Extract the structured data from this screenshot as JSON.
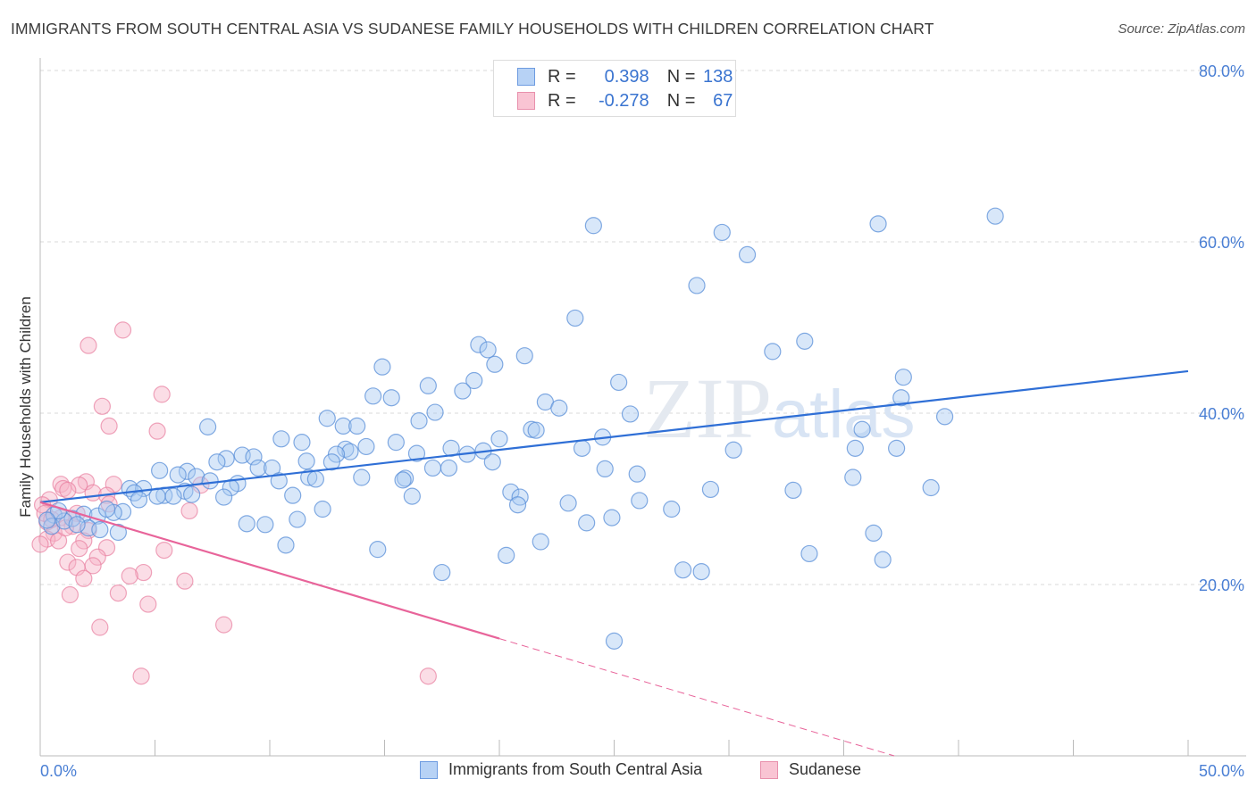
{
  "title": "IMMIGRANTS FROM SOUTH CENTRAL ASIA VS SUDANESE FAMILY HOUSEHOLDS WITH CHILDREN CORRELATION CHART",
  "source": "Source: ZipAtlas.com",
  "watermark": "ZIPatlas",
  "legend": {
    "r_label": "R =",
    "n_label": "N =",
    "blue": {
      "r": "0.398",
      "n": "138"
    },
    "pink": {
      "r": "-0.278",
      "n": "67"
    }
  },
  "chart_data": {
    "type": "scatter",
    "title": "IMMIGRANTS FROM SOUTH CENTRAL ASIA VS SUDANESE FAMILY HOUSEHOLDS WITH CHILDREN CORRELATION CHART",
    "xlabel": "",
    "ylabel": "Family Households with Children",
    "xlim": [
      0,
      50
    ],
    "ylim": [
      0,
      80
    ],
    "x_tick_labels": [
      "0.0%",
      "50.0%"
    ],
    "y_ticks": [
      20,
      40,
      60,
      80
    ],
    "y_tick_labels": [
      "20.0%",
      "40.0%",
      "60.0%",
      "80.0%"
    ],
    "grid": true,
    "legend_placement": "bottom",
    "colors": {
      "blue": "#5a8fd8",
      "blue_fill": "#a9c9f2",
      "pink": "#e87fa0",
      "pink_fill": "#f6b3c7",
      "blue_line": "#2f6fd6",
      "pink_line": "#e8649a"
    },
    "series": [
      {
        "name": "Immigrants from South Central Asia",
        "trend": {
          "x0": 0,
          "y0": 29.6,
          "x1": 50,
          "y1": 44.9
        },
        "points": [
          [
            24.1,
            61.9
          ],
          [
            29.7,
            61.1
          ],
          [
            36.5,
            62.1
          ],
          [
            41.6,
            63.0
          ],
          [
            30.8,
            58.5
          ],
          [
            28.6,
            54.9
          ],
          [
            23.3,
            51.1
          ],
          [
            33.3,
            48.4
          ],
          [
            31.9,
            47.2
          ],
          [
            19.1,
            48.0
          ],
          [
            19.5,
            47.4
          ],
          [
            21.1,
            46.7
          ],
          [
            19.8,
            45.7
          ],
          [
            14.9,
            45.4
          ],
          [
            37.6,
            44.2
          ],
          [
            16.9,
            43.2
          ],
          [
            18.9,
            43.8
          ],
          [
            18.4,
            42.6
          ],
          [
            25.2,
            43.6
          ],
          [
            14.5,
            42.0
          ],
          [
            15.3,
            41.8
          ],
          [
            22.0,
            41.3
          ],
          [
            22.6,
            40.6
          ],
          [
            37.5,
            41.8
          ],
          [
            17.2,
            40.1
          ],
          [
            25.7,
            39.9
          ],
          [
            39.4,
            39.6
          ],
          [
            16.5,
            39.1
          ],
          [
            12.5,
            39.4
          ],
          [
            13.2,
            38.5
          ],
          [
            13.8,
            38.5
          ],
          [
            7.3,
            38.4
          ],
          [
            21.4,
            38.1
          ],
          [
            21.6,
            38.0
          ],
          [
            35.8,
            38.1
          ],
          [
            24.5,
            37.2
          ],
          [
            10.5,
            37.0
          ],
          [
            11.4,
            36.6
          ],
          [
            15.5,
            36.6
          ],
          [
            20.0,
            37.0
          ],
          [
            14.2,
            36.1
          ],
          [
            13.3,
            35.8
          ],
          [
            17.9,
            35.9
          ],
          [
            13.5,
            35.5
          ],
          [
            12.9,
            35.2
          ],
          [
            23.6,
            35.9
          ],
          [
            35.5,
            35.9
          ],
          [
            37.3,
            35.9
          ],
          [
            30.2,
            35.7
          ],
          [
            8.8,
            35.1
          ],
          [
            9.3,
            34.9
          ],
          [
            8.1,
            34.7
          ],
          [
            16.4,
            35.3
          ],
          [
            18.6,
            35.2
          ],
          [
            19.3,
            35.6
          ],
          [
            7.7,
            34.3
          ],
          [
            11.6,
            34.4
          ],
          [
            12.7,
            34.3
          ],
          [
            19.7,
            34.3
          ],
          [
            9.5,
            33.6
          ],
          [
            10.1,
            33.6
          ],
          [
            5.2,
            33.3
          ],
          [
            6.4,
            33.2
          ],
          [
            17.1,
            33.6
          ],
          [
            17.8,
            33.6
          ],
          [
            24.6,
            33.5
          ],
          [
            6.8,
            32.6
          ],
          [
            6.0,
            32.8
          ],
          [
            11.7,
            32.5
          ],
          [
            12.0,
            32.3
          ],
          [
            14.0,
            32.5
          ],
          [
            15.9,
            32.4
          ],
          [
            15.8,
            32.2
          ],
          [
            26.0,
            32.9
          ],
          [
            35.4,
            32.5
          ],
          [
            7.4,
            32.1
          ],
          [
            10.4,
            32.1
          ],
          [
            8.6,
            31.8
          ],
          [
            8.3,
            31.3
          ],
          [
            3.9,
            31.2
          ],
          [
            4.5,
            31.2
          ],
          [
            4.1,
            30.7
          ],
          [
            5.4,
            30.4
          ],
          [
            5.1,
            30.3
          ],
          [
            6.3,
            30.9
          ],
          [
            5.8,
            30.3
          ],
          [
            6.6,
            30.5
          ],
          [
            11.0,
            30.4
          ],
          [
            16.2,
            30.3
          ],
          [
            20.5,
            30.8
          ],
          [
            20.9,
            30.2
          ],
          [
            29.2,
            31.1
          ],
          [
            32.8,
            31.0
          ],
          [
            38.8,
            31.3
          ],
          [
            4.3,
            29.9
          ],
          [
            8.0,
            30.2
          ],
          [
            26.1,
            29.8
          ],
          [
            23.0,
            29.5
          ],
          [
            20.8,
            29.3
          ],
          [
            12.3,
            28.8
          ],
          [
            3.6,
            28.5
          ],
          [
            3.2,
            28.4
          ],
          [
            27.5,
            28.8
          ],
          [
            0.6,
            28.1
          ],
          [
            1.9,
            28.2
          ],
          [
            2.5,
            28.0
          ],
          [
            1.4,
            27.7
          ],
          [
            11.2,
            27.6
          ],
          [
            24.9,
            27.8
          ],
          [
            23.8,
            27.2
          ],
          [
            9.0,
            27.1
          ],
          [
            9.8,
            27.0
          ],
          [
            0.5,
            26.8
          ],
          [
            1.05,
            27.4
          ],
          [
            2.1,
            26.6
          ],
          [
            2.6,
            26.4
          ],
          [
            3.4,
            26.1
          ],
          [
            36.3,
            26.0
          ],
          [
            21.8,
            25.0
          ],
          [
            10.7,
            24.6
          ],
          [
            14.7,
            24.1
          ],
          [
            33.5,
            23.6
          ],
          [
            20.3,
            23.4
          ],
          [
            36.7,
            22.9
          ],
          [
            17.5,
            21.4
          ],
          [
            28.0,
            21.7
          ],
          [
            28.8,
            21.5
          ],
          [
            25.0,
            13.4
          ],
          [
            0.8,
            28.6
          ],
          [
            1.6,
            27.0
          ],
          [
            2.9,
            28.8
          ],
          [
            0.3,
            27.5
          ]
        ]
      },
      {
        "name": "Sudanese",
        "trend": {
          "x0": 0,
          "y0": 29.6,
          "x_solid_end": 20.0,
          "x1": 37.2,
          "y1": 0
        },
        "points": [
          [
            3.6,
            49.7
          ],
          [
            2.1,
            47.9
          ],
          [
            5.3,
            42.2
          ],
          [
            2.7,
            40.8
          ],
          [
            3.0,
            38.5
          ],
          [
            5.1,
            37.9
          ],
          [
            3.2,
            31.7
          ],
          [
            2.0,
            32.0
          ],
          [
            0.9,
            31.7
          ],
          [
            1.7,
            31.6
          ],
          [
            1.0,
            31.2
          ],
          [
            1.2,
            31.0
          ],
          [
            7.0,
            31.6
          ],
          [
            2.3,
            30.7
          ],
          [
            2.9,
            30.4
          ],
          [
            0.4,
            29.9
          ],
          [
            0.1,
            29.3
          ],
          [
            6.5,
            28.6
          ],
          [
            1.6,
            28.3
          ],
          [
            0.9,
            27.8
          ],
          [
            3.0,
            29.4
          ],
          [
            0.3,
            27.3
          ],
          [
            1.4,
            26.8
          ],
          [
            2.1,
            26.3
          ],
          [
            0.6,
            26.0
          ],
          [
            0.3,
            25.3
          ],
          [
            0.8,
            25.1
          ],
          [
            1.9,
            25.1
          ],
          [
            1.7,
            24.2
          ],
          [
            2.9,
            24.3
          ],
          [
            5.4,
            24.0
          ],
          [
            2.5,
            23.2
          ],
          [
            1.2,
            22.6
          ],
          [
            2.3,
            22.2
          ],
          [
            1.6,
            22.0
          ],
          [
            4.5,
            21.4
          ],
          [
            3.9,
            21.0
          ],
          [
            1.9,
            20.7
          ],
          [
            6.3,
            20.4
          ],
          [
            3.4,
            19.0
          ],
          [
            1.3,
            18.8
          ],
          [
            4.7,
            17.7
          ],
          [
            2.6,
            15.0
          ],
          [
            8.0,
            15.3
          ],
          [
            4.4,
            9.3
          ],
          [
            16.9,
            9.3
          ],
          [
            0.2,
            28.3
          ],
          [
            0.5,
            27.6
          ],
          [
            1.1,
            26.6
          ],
          [
            0.0,
            24.7
          ]
        ]
      }
    ]
  }
}
